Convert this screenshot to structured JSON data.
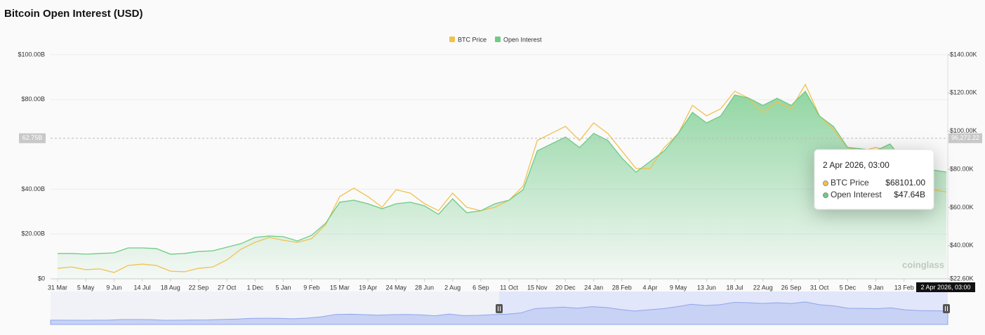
{
  "chart_data": {
    "type": "line",
    "title": "Bitcoin Open Interest (USD)",
    "categories": [
      "31 Mar",
      null,
      "5 May",
      null,
      "9 Jun",
      null,
      "14 Jul",
      null,
      "18 Aug",
      null,
      "22 Sep",
      null,
      "27 Oct",
      null,
      "1 Dec",
      null,
      "5 Jan",
      null,
      "9 Feb",
      null,
      "15 Mar",
      null,
      "19 Apr",
      null,
      "24 May",
      null,
      "28 Jun",
      null,
      "2 Aug",
      null,
      "6 Sep",
      null,
      "11 Oct",
      null,
      "15 Nov",
      null,
      "20 Dec",
      null,
      "24 Jan",
      null,
      "28 Feb",
      null,
      "4 Apr",
      null,
      "9 May",
      null,
      "13 Jun",
      null,
      "18 Jul",
      null,
      "22 Aug",
      null,
      "26 Sep",
      null,
      "31 Oct",
      null,
      "5 Dec",
      null,
      "9 Jan",
      null,
      "13 Feb",
      null,
      null,
      null
    ],
    "series": [
      {
        "name": "BTC Price",
        "color": "#f2c14e",
        "axis": "y2",
        "values": [
          28.1,
          28.8,
          27.4,
          27.8,
          25.9,
          29.6,
          30.3,
          29.6,
          26.6,
          26.3,
          28.1,
          28.8,
          32.5,
          38.1,
          41.7,
          44.3,
          42.8,
          41.7,
          43.6,
          50.9,
          65.7,
          70.1,
          65.7,
          60.1,
          69.3,
          67.5,
          62,
          58.3,
          67.5,
          60.1,
          58.3,
          60.1,
          63.8,
          71.2,
          95.1,
          98.8,
          102.5,
          95.1,
          104.3,
          98.8,
          89.6,
          80.4,
          80.4,
          91.4,
          98.8,
          113.5,
          108,
          111.7,
          120.9,
          117.2,
          109.8,
          115.3,
          111.7,
          124.5,
          108,
          100.6,
          91.4,
          89.6,
          91.4,
          89.6,
          78.5,
          73,
          69.3,
          68.101
        ]
      },
      {
        "name": "Open Interest",
        "color": "#6fca86",
        "values": [
          11.3,
          11.3,
          11,
          11.3,
          11.6,
          13.8,
          13.8,
          13.5,
          11,
          11.3,
          12.2,
          12.5,
          14.1,
          15.7,
          18.5,
          19.1,
          18.8,
          16.9,
          19.4,
          24.8,
          34.2,
          35.1,
          33.5,
          31.3,
          33.5,
          34.2,
          32.6,
          28.8,
          35.7,
          29.5,
          30.4,
          33.5,
          35.1,
          39.8,
          57.1,
          60.2,
          63.3,
          58.6,
          64.9,
          61.8,
          53.9,
          47.6,
          52.4,
          57.1,
          64.9,
          74.3,
          69.6,
          72.7,
          82.1,
          80.6,
          77.4,
          80.6,
          77.4,
          83.7,
          72.7,
          68,
          58.6,
          58,
          57.1,
          60.2,
          52.4,
          49.2,
          48.6,
          47.64
        ]
      }
    ],
    "ylim": [
      0,
      100
    ],
    "yticks": [
      {
        "value": 0,
        "label": "$0"
      },
      {
        "value": 20,
        "label": "$20.00B"
      },
      {
        "value": 40,
        "label": "$40.00B"
      },
      {
        "value": 80,
        "label": "$80.00B"
      },
      {
        "value": 100,
        "label": "$100.00B"
      }
    ],
    "y2lim": [
      22.6,
      140
    ],
    "y2ticks": [
      {
        "value": 22.6,
        "label": "$22.60K"
      },
      {
        "value": 40,
        "label": "$40.00K"
      },
      {
        "value": 60,
        "label": "$60.00K"
      },
      {
        "value": 80,
        "label": "$80.00K"
      },
      {
        "value": 100,
        "label": "$100.00K"
      },
      {
        "value": 120,
        "label": "$120.00K"
      },
      {
        "value": 140,
        "label": "$140.00K"
      }
    ],
    "legend": "top",
    "crosshair": {
      "x_label": "2 Apr 2026, 03:00",
      "y": {
        "value": 62.75,
        "label": "62.75B"
      },
      "y2": {
        "value": 96.27222,
        "label": "96,272.22"
      }
    },
    "tooltip": {
      "value_labels": [
        "$68101.00",
        "$47.64B"
      ]
    },
    "watermark": "coinglass"
  }
}
